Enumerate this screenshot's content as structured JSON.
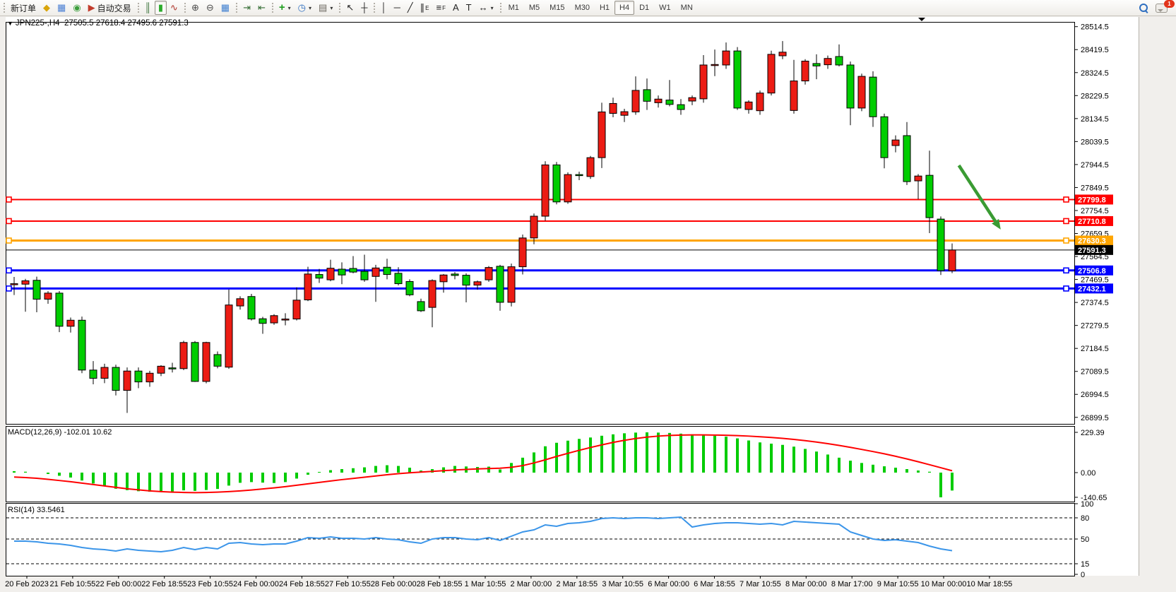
{
  "toolbar": {
    "chat_badge": "1",
    "groups": [
      {
        "name": "trade-group",
        "items": [
          {
            "name": "new-order-button",
            "label": "新订单"
          },
          {
            "name": "market-watch-icon",
            "glyph": "◆",
            "color": "#d9a50b"
          },
          {
            "name": "data-window-icon",
            "glyph": "▦",
            "color": "#4a7fd4"
          },
          {
            "name": "navigator-icon",
            "glyph": "◉",
            "color": "#3c9e3c"
          },
          {
            "name": "autotrading-button",
            "glyph": "▶",
            "color": "#c23b2b",
            "label": "自动交易"
          }
        ]
      },
      {
        "name": "chart-type-group",
        "items": [
          {
            "name": "bar-chart-icon",
            "glyph": "║",
            "color": "#356e35"
          },
          {
            "name": "candlestick-chart-icon",
            "glyph": "▮",
            "color": "#2bab2b",
            "pressed": true
          },
          {
            "name": "line-chart-icon",
            "glyph": "∿",
            "color": "#b0352c"
          }
        ]
      },
      {
        "name": "zoom-group",
        "items": [
          {
            "name": "zoom-in-icon",
            "glyph": "⊕",
            "color": "#4a4a4a"
          },
          {
            "name": "zoom-out-icon",
            "glyph": "⊖",
            "color": "#4a4a4a"
          },
          {
            "name": "tile-windows-icon",
            "glyph": "▦",
            "color": "#3f7fd0"
          }
        ]
      },
      {
        "name": "scroll-group",
        "items": [
          {
            "name": "auto-scroll-icon",
            "glyph": "⇥",
            "color": "#356e35"
          },
          {
            "name": "chart-shift-icon",
            "glyph": "⇤",
            "color": "#356e35"
          }
        ]
      },
      {
        "name": "insert-group",
        "items": [
          {
            "name": "add-indicator-icon",
            "glyph": "+",
            "color": "#1e9e1e",
            "bold": true,
            "dropdown": "▾"
          },
          {
            "name": "period-icon",
            "glyph": "◷",
            "color": "#2f6fc0",
            "dropdown": "▾"
          },
          {
            "name": "template-icon",
            "glyph": "▤",
            "color": "#6b675f",
            "dropdown": "▾"
          }
        ]
      },
      {
        "name": "pointer-group",
        "items": [
          {
            "name": "cursor-icon",
            "glyph": "↖",
            "color": "#222"
          },
          {
            "name": "crosshair-icon",
            "glyph": "┼",
            "color": "#222"
          }
        ]
      },
      {
        "name": "objects-group",
        "items": [
          {
            "name": "vertical-line-icon",
            "glyph": "│",
            "color": "#222"
          },
          {
            "name": "horizontal-line-icon",
            "glyph": "─",
            "color": "#222"
          },
          {
            "name": "trendline-icon",
            "glyph": "╱",
            "color": "#222"
          },
          {
            "name": "equidistant-channel-icon",
            "glyph": "∥",
            "sub": "E",
            "color": "#222"
          },
          {
            "name": "fibonacci-icon",
            "glyph": "≡",
            "sub": "F",
            "color": "#222"
          },
          {
            "name": "text-icon",
            "glyph": "A",
            "color": "#222"
          },
          {
            "name": "text-label-icon",
            "glyph": "T",
            "color": "#222"
          },
          {
            "name": "arrows-icon",
            "glyph": "↔",
            "color": "#222",
            "dropdown": "▾"
          }
        ]
      },
      {
        "name": "timeframe-group",
        "tf": true,
        "items": [
          {
            "name": "tf-m1",
            "label": "M1"
          },
          {
            "name": "tf-m5",
            "label": "M5"
          },
          {
            "name": "tf-m15",
            "label": "M15"
          },
          {
            "name": "tf-m30",
            "label": "M30"
          },
          {
            "name": "tf-h1",
            "label": "H1"
          },
          {
            "name": "tf-h4",
            "label": "H4",
            "pressed": true
          },
          {
            "name": "tf-d1",
            "label": "D1"
          },
          {
            "name": "tf-w1",
            "label": "W1"
          },
          {
            "name": "tf-mn",
            "label": "MN"
          }
        ]
      }
    ]
  },
  "chart": {
    "oneclick_glyph": "▼",
    "title_symbol": "JPN225-,H4",
    "title_ohlc": "27505.5 27618.4 27495.6 27591.3",
    "macd_label": "MACD(12,26,9) -102.01 10.62",
    "rsi_label": "RSI(14) 33.5461"
  },
  "chart_data": {
    "type": "candlestick",
    "symbol": "JPN225-",
    "period": "H4",
    "current_ohlc": {
      "open": 27505.5,
      "high": 27618.4,
      "low": 27495.6,
      "close": 27591.3
    },
    "colors": {
      "bull": "#ec1c14",
      "bear": "#00cd00",
      "wick": "#000000",
      "macd_hist": "#00cc00",
      "macd_signal": "#ff0000",
      "rsi_line": "#3b95e9",
      "arrow": "#3a9b33"
    },
    "price_axis_ticks": [
      28514.5,
      28419.5,
      28324.5,
      28229.5,
      28134.5,
      28039.5,
      27944.5,
      27849.5,
      27754.5,
      27659.5,
      27564.5,
      27469.5,
      27374.5,
      27279.5,
      27184.5,
      27089.5,
      26994.5,
      26899.5
    ],
    "hlines": [
      {
        "price": 27799.8,
        "label": "27799.8",
        "color": "#ff0000",
        "width": 2
      },
      {
        "price": 27710.8,
        "label": "27710.8",
        "color": "#ff0000",
        "width": 2
      },
      {
        "price": 27630.3,
        "label": "27630.3",
        "color": "#ffa500",
        "width": 3
      },
      {
        "price": 27506.8,
        "label": "27506.8",
        "color": "#0000ff",
        "width": 3
      },
      {
        "price": 27432.1,
        "label": "27432.1",
        "color": "#0000ff",
        "width": 3
      }
    ],
    "current_price": {
      "value": 27591.3,
      "label": "27591.3",
      "line_color": "#000000",
      "tag_bg": "#000000"
    },
    "candles": [
      [
        27449,
        27480,
        27405,
        27452
      ],
      [
        27450,
        27472,
        27336,
        27464
      ],
      [
        27466,
        27481,
        27334,
        27388
      ],
      [
        27388,
        27421,
        27369,
        27413
      ],
      [
        27413,
        27422,
        27252,
        27276
      ],
      [
        27276,
        27312,
        27250,
        27301
      ],
      [
        27301,
        27316,
        27082,
        27095
      ],
      [
        27095,
        27132,
        27036,
        27061
      ],
      [
        27061,
        27121,
        27041,
        27106
      ],
      [
        27106,
        27117,
        26990,
        27011
      ],
      [
        27011,
        27106,
        26918,
        27091
      ],
      [
        27091,
        27106,
        27020,
        27046
      ],
      [
        27046,
        27092,
        27026,
        27082
      ],
      [
        27082,
        27115,
        27070,
        27111
      ],
      [
        27104,
        27125,
        27085,
        27103
      ],
      [
        27101,
        27216,
        27095,
        27209
      ],
      [
        27209,
        27215,
        27046,
        27048
      ],
      [
        27048,
        27212,
        27040,
        27209
      ],
      [
        27159,
        27172,
        27102,
        27111
      ],
      [
        27107,
        27428,
        27100,
        27364
      ],
      [
        27360,
        27400,
        27345,
        27390
      ],
      [
        27399,
        27410,
        27300,
        27306
      ],
      [
        27307,
        27315,
        27245,
        27288
      ],
      [
        27290,
        27326,
        27282,
        27320
      ],
      [
        27305,
        27330,
        27280,
        27306
      ],
      [
        27306,
        27437,
        27300,
        27384
      ],
      [
        27385,
        27522,
        27380,
        27492
      ],
      [
        27490,
        27513,
        27455,
        27475
      ],
      [
        27468,
        27551,
        27462,
        27516
      ],
      [
        27512,
        27540,
        27450,
        27488
      ],
      [
        27515,
        27566,
        27495,
        27500
      ],
      [
        27503,
        27572,
        27460,
        27468
      ],
      [
        27482,
        27530,
        27377,
        27517
      ],
      [
        27520,
        27555,
        27470,
        27490
      ],
      [
        27495,
        27520,
        27445,
        27452
      ],
      [
        27461,
        27470,
        27400,
        27406
      ],
      [
        27378,
        27390,
        27335,
        27340
      ],
      [
        27354,
        27470,
        27272,
        27465
      ],
      [
        27460,
        27492,
        27415,
        27488
      ],
      [
        27492,
        27500,
        27470,
        27486
      ],
      [
        27487,
        27495,
        27375,
        27446
      ],
      [
        27446,
        27465,
        27427,
        27460
      ],
      [
        27468,
        27525,
        27460,
        27519
      ],
      [
        27524,
        27530,
        27340,
        27375
      ],
      [
        27375,
        27535,
        27358,
        27522
      ],
      [
        27522,
        27655,
        27490,
        27641
      ],
      [
        27641,
        27742,
        27615,
        27731
      ],
      [
        27731,
        27958,
        27712,
        27943
      ],
      [
        27943,
        27955,
        27780,
        27790
      ],
      [
        27790,
        27912,
        27782,
        27903
      ],
      [
        27903,
        27915,
        27880,
        27899
      ],
      [
        27895,
        27980,
        27885,
        27973
      ],
      [
        27973,
        28200,
        27930,
        28162
      ],
      [
        28156,
        28221,
        28140,
        28197
      ],
      [
        28148,
        28175,
        28120,
        28163
      ],
      [
        28162,
        28309,
        28150,
        28251
      ],
      [
        28254,
        28300,
        28170,
        28206
      ],
      [
        28200,
        28230,
        28180,
        28215
      ],
      [
        28211,
        28294,
        28185,
        28193
      ],
      [
        28192,
        28215,
        28150,
        28172
      ],
      [
        28207,
        28230,
        28190,
        28221
      ],
      [
        28216,
        28397,
        28200,
        28356
      ],
      [
        28356,
        28420,
        28310,
        28358
      ],
      [
        28356,
        28449,
        28340,
        28414
      ],
      [
        28414,
        28430,
        28170,
        28178
      ],
      [
        28172,
        28210,
        28155,
        28203
      ],
      [
        28167,
        28250,
        28150,
        28240
      ],
      [
        28240,
        28415,
        28230,
        28400
      ],
      [
        28394,
        28455,
        28380,
        28409
      ],
      [
        28168,
        28377,
        28155,
        28290
      ],
      [
        28290,
        28380,
        28275,
        28372
      ],
      [
        28362,
        28400,
        28297,
        28352
      ],
      [
        28357,
        28395,
        28340,
        28383
      ],
      [
        28391,
        28441,
        28350,
        28356
      ],
      [
        28356,
        28370,
        28107,
        28178
      ],
      [
        28178,
        28320,
        28165,
        28309
      ],
      [
        28306,
        28330,
        28100,
        28142
      ],
      [
        28142,
        28155,
        27929,
        27973
      ],
      [
        28023,
        28065,
        27995,
        28046
      ],
      [
        28064,
        28120,
        27860,
        27874
      ],
      [
        27877,
        27905,
        27801,
        27897
      ],
      [
        27900,
        28002,
        27661,
        27725
      ],
      [
        27719,
        27730,
        27488,
        27506
      ],
      [
        27505.5,
        27618.4,
        27495.6,
        27591.3
      ]
    ],
    "macd": {
      "label": "MACD(12,26,9) -102.01 10.62",
      "axis_ticks": [
        "229.39",
        "0.00",
        "-140.65"
      ],
      "axis_tick_values": [
        229.39,
        0,
        -140.65
      ],
      "histogram": [
        8,
        5,
        0,
        -8,
        -18,
        -28,
        -45,
        -62,
        -78,
        -92,
        -100,
        -106,
        -109,
        -111,
        -108,
        -101,
        -104,
        -99,
        -93,
        -74,
        -58,
        -54,
        -57,
        -59,
        -54,
        -34,
        -12,
        4,
        14,
        20,
        25,
        30,
        38,
        42,
        38,
        28,
        12,
        20,
        30,
        38,
        35,
        32,
        34,
        18,
        55,
        85,
        115,
        150,
        170,
        182,
        192,
        200,
        210,
        218,
        224,
        228,
        229.39,
        228,
        226,
        222,
        218,
        214,
        210,
        205,
        195,
        183,
        172,
        165,
        158,
        148,
        135,
        120,
        103,
        85,
        68,
        55,
        45,
        36,
        28,
        20,
        12,
        5,
        -140.65,
        -102.01
      ],
      "signal": [
        -25,
        -28,
        -32,
        -38,
        -45,
        -52,
        -60,
        -68,
        -76,
        -84,
        -92,
        -98,
        -104,
        -108,
        -111,
        -113,
        -114,
        -113,
        -111,
        -108,
        -104,
        -99,
        -93,
        -87,
        -80,
        -72,
        -64,
        -56,
        -48,
        -40,
        -33,
        -26,
        -19,
        -12,
        -6,
        -1,
        3,
        7,
        11,
        15,
        18,
        21,
        23,
        25,
        30,
        40,
        55,
        73,
        92,
        110,
        127,
        143,
        158,
        172,
        184,
        194,
        202,
        208,
        212,
        214,
        215,
        215,
        214,
        213,
        211,
        208,
        204,
        200,
        195,
        189,
        182,
        174,
        165,
        155,
        144,
        132,
        120,
        107,
        93,
        78,
        62,
        45,
        28,
        10.62
      ]
    },
    "rsi": {
      "label": "RSI(14) 33.5461",
      "axis_ticks": [
        "100",
        "80",
        "50",
        "15",
        "0"
      ],
      "axis_tick_values": [
        100,
        80,
        50,
        15,
        0
      ],
      "dashed_levels": [
        80,
        50,
        15
      ],
      "values": [
        47,
        47,
        46,
        44,
        43,
        41,
        38,
        36,
        35,
        33,
        36,
        34,
        33,
        32,
        34,
        38,
        35,
        38,
        36,
        44,
        45,
        43,
        42,
        43,
        43,
        47,
        52,
        51,
        53,
        51,
        51,
        50,
        52,
        50,
        49,
        46,
        44,
        50,
        52,
        52,
        50,
        49,
        52,
        48,
        54,
        60,
        63,
        70,
        68,
        72,
        73,
        75,
        79,
        80,
        79,
        80,
        80,
        79,
        80,
        81,
        67,
        70,
        72,
        73,
        73,
        72,
        71,
        72,
        70,
        75,
        74,
        73,
        72,
        71,
        60,
        55,
        50,
        48,
        49,
        47,
        45,
        40,
        36,
        33.5461
      ]
    },
    "date_labels": [
      "20 Feb 2023",
      "21 Feb 10:55",
      "22 Feb 00:00",
      "22 Feb 18:55",
      "23 Feb 10:55",
      "24 Feb 00:00",
      "24 Feb 18:55",
      "27 Feb 10:55",
      "28 Feb 00:00",
      "28 Feb 18:55",
      "1 Mar 10:55",
      "2 Mar 00:00",
      "2 Mar 18:55",
      "3 Mar 10:55",
      "6 Mar 00:00",
      "6 Mar 18:55",
      "7 Mar 10:55",
      "8 Mar 00:00",
      "8 Mar 17:00",
      "9 Mar 10:55",
      "10 Mar 00:00",
      "10 Mar 18:55"
    ],
    "annotation_arrow": {
      "bar_from": 83.6,
      "price_from": 27941,
      "bar_to": 87.3,
      "price_to": 27676
    }
  }
}
